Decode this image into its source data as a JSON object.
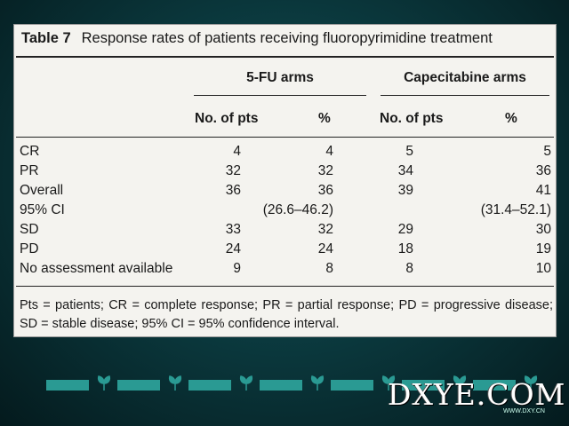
{
  "table": {
    "label": "Table 7",
    "caption": "Response rates of patients receiving fluoropyrimidine treatment",
    "groups": [
      "5-FU arms",
      "Capecitabine arms"
    ],
    "columns": [
      "No. of pts",
      "%",
      "No. of pts",
      "%"
    ],
    "rows": [
      {
        "label": "CR",
        "v1": "4",
        "v2": "4",
        "v3": "5",
        "v4": "5"
      },
      {
        "label": "PR",
        "v1": "32",
        "v2": "32",
        "v3": "34",
        "v4": "36"
      },
      {
        "label": "Overall",
        "v1": "36",
        "v2": "36",
        "v3": "39",
        "v4": "41"
      },
      {
        "label": "95% CI",
        "v1": "",
        "v2": "(26.6–46.2)",
        "v3": "",
        "v4": "(31.4–52.1)"
      },
      {
        "label": "SD",
        "v1": "33",
        "v2": "32",
        "v3": "29",
        "v4": "30"
      },
      {
        "label": "PD",
        "v1": "24",
        "v2": "24",
        "v3": "18",
        "v4": "19"
      },
      {
        "label": "No assessment available",
        "v1": "9",
        "v2": "8",
        "v3": "8",
        "v4": "10"
      }
    ],
    "footnote": "Pts = patients; CR = complete response; PR = partial response; PD = progressive disease; SD = stable disease; 95% CI = 95% confidence interval."
  },
  "watermark": {
    "text": "DXYE.COM",
    "sub": "WWW.DXY.CN"
  },
  "colors": {
    "accent": "#2a9a93",
    "card": "#f4f3ef"
  }
}
